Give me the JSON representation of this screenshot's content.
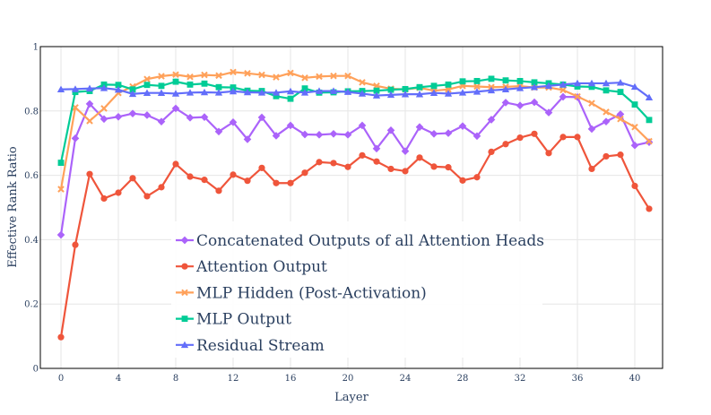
{
  "chart_data": {
    "type": "line",
    "title": "",
    "xlabel": "Layer",
    "ylabel": "Effective Rank Ratio",
    "xlim": [
      -2,
      42.5
    ],
    "ylim": [
      0,
      1
    ],
    "xticks": [
      0,
      4,
      8,
      12,
      16,
      20,
      24,
      28,
      32,
      36,
      40
    ],
    "xtick_labels": [
      "0",
      "4",
      "8",
      "12",
      "16",
      "20",
      "24",
      "28",
      "32",
      "36",
      "40"
    ],
    "yticks": [
      0,
      0.2,
      0.4,
      0.6,
      0.8,
      1
    ],
    "ytick_labels": [
      "0",
      "0.2",
      "0.4",
      "0.6",
      "0.8",
      "1"
    ],
    "grid": true,
    "legend_position": "bottom-center",
    "x": [
      0,
      1,
      2,
      3,
      4,
      5,
      6,
      7,
      8,
      9,
      10,
      11,
      12,
      13,
      14,
      15,
      16,
      17,
      18,
      19,
      20,
      21,
      22,
      23,
      24,
      25,
      26,
      27,
      28,
      29,
      30,
      31,
      32,
      33,
      34,
      35,
      36,
      37,
      38,
      39,
      40,
      41
    ],
    "series": [
      {
        "name": "Concatenated Outputs of all Attention Heads",
        "color": "#ab63fa",
        "marker": "diamond",
        "values": [
          0.415,
          0.715,
          0.822,
          0.775,
          0.782,
          0.792,
          0.787,
          0.767,
          0.808,
          0.779,
          0.781,
          0.736,
          0.765,
          0.712,
          0.78,
          0.723,
          0.755,
          0.727,
          0.726,
          0.729,
          0.726,
          0.755,
          0.683,
          0.74,
          0.675,
          0.75,
          0.729,
          0.731,
          0.753,
          0.722,
          0.773,
          0.826,
          0.817,
          0.827,
          0.795,
          0.844,
          0.843,
          0.744,
          0.767,
          0.79,
          0.693,
          0.703
        ]
      },
      {
        "name": "Attention Output",
        "color": "#ef553b",
        "marker": "circle",
        "values": [
          0.097,
          0.384,
          0.604,
          0.528,
          0.546,
          0.591,
          0.535,
          0.563,
          0.635,
          0.596,
          0.586,
          0.552,
          0.602,
          0.583,
          0.623,
          0.576,
          0.576,
          0.608,
          0.641,
          0.638,
          0.626,
          0.662,
          0.643,
          0.62,
          0.613,
          0.655,
          0.627,
          0.625,
          0.584,
          0.594,
          0.673,
          0.697,
          0.717,
          0.729,
          0.669,
          0.719,
          0.719,
          0.62,
          0.659,
          0.664,
          0.567,
          0.496
        ]
      },
      {
        "name": "MLP Hidden (Post-Activation)",
        "color": "#ffa15a",
        "marker": "x",
        "values": [
          0.557,
          0.811,
          0.769,
          0.808,
          0.856,
          0.876,
          0.899,
          0.908,
          0.913,
          0.906,
          0.912,
          0.91,
          0.921,
          0.917,
          0.912,
          0.905,
          0.918,
          0.903,
          0.907,
          0.909,
          0.909,
          0.889,
          0.878,
          0.869,
          0.867,
          0.872,
          0.863,
          0.867,
          0.878,
          0.876,
          0.874,
          0.875,
          0.877,
          0.873,
          0.873,
          0.865,
          0.845,
          0.824,
          0.797,
          0.775,
          0.75,
          0.706
        ]
      },
      {
        "name": "MLP Output",
        "color": "#00cc96",
        "marker": "square",
        "values": [
          0.639,
          0.859,
          0.862,
          0.882,
          0.881,
          0.867,
          0.881,
          0.878,
          0.891,
          0.882,
          0.885,
          0.874,
          0.873,
          0.863,
          0.862,
          0.846,
          0.838,
          0.87,
          0.857,
          0.858,
          0.861,
          0.862,
          0.863,
          0.866,
          0.868,
          0.874,
          0.878,
          0.882,
          0.892,
          0.893,
          0.9,
          0.895,
          0.893,
          0.889,
          0.886,
          0.882,
          0.876,
          0.875,
          0.864,
          0.859,
          0.82,
          0.772
        ]
      },
      {
        "name": "Residual Stream",
        "color": "#636efa",
        "marker": "triangle",
        "values": [
          0.867,
          0.868,
          0.87,
          0.871,
          0.866,
          0.853,
          0.856,
          0.856,
          0.854,
          0.857,
          0.858,
          0.857,
          0.861,
          0.858,
          0.857,
          0.857,
          0.861,
          0.857,
          0.862,
          0.862,
          0.859,
          0.854,
          0.848,
          0.85,
          0.852,
          0.852,
          0.856,
          0.854,
          0.857,
          0.86,
          0.864,
          0.867,
          0.871,
          0.874,
          0.878,
          0.882,
          0.886,
          0.886,
          0.886,
          0.888,
          0.875,
          0.842
        ]
      }
    ]
  }
}
